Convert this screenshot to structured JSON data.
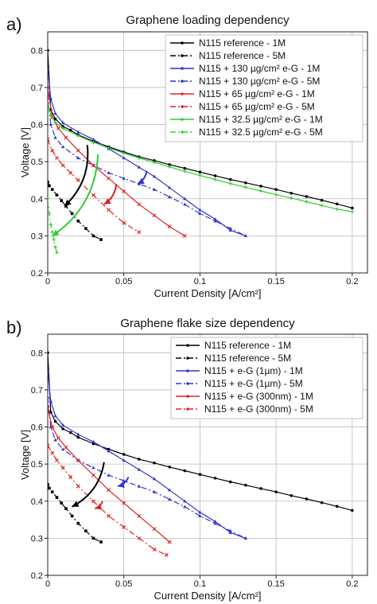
{
  "panels": [
    {
      "panel_tag": "a)",
      "chart_data": {
        "type": "line",
        "title": "Graphene loading dependency",
        "xlabel": "Current Density [A/cm²]",
        "ylabel": "Voltage [V]",
        "xlim": [
          0,
          0.21
        ],
        "ylim": [
          0.2,
          0.85
        ],
        "xticks": [
          "0",
          "0.05",
          "0.1",
          "0.15",
          "0.2"
        ],
        "yticks": [
          "0.2",
          "0.3",
          "0.4",
          "0.5",
          "0.6",
          "0.7",
          "0.8"
        ],
        "grid": true,
        "legend_position": "top-right",
        "series": [
          {
            "name": "N115 reference - 1M",
            "color": "#000000",
            "dash": "solid",
            "marker": "circle",
            "x": [
              0,
              0.002,
              0.005,
              0.01,
              0.015,
              0.02,
              0.03,
              0.04,
              0.05,
              0.06,
              0.07,
              0.08,
              0.09,
              0.1,
              0.11,
              0.12,
              0.13,
              0.14,
              0.15,
              0.16,
              0.17,
              0.18,
              0.19,
              0.2
            ],
            "y": [
              0.8,
              0.64,
              0.615,
              0.595,
              0.585,
              0.572,
              0.555,
              0.54,
              0.526,
              0.513,
              0.503,
              0.492,
              0.482,
              0.472,
              0.462,
              0.452,
              0.443,
              0.434,
              0.425,
              0.415,
              0.406,
              0.396,
              0.386,
              0.375
            ]
          },
          {
            "name": "N115 reference - 5M",
            "color": "#000000",
            "dash": "dashdot",
            "marker": "square",
            "x": [
              0,
              0.001,
              0.003,
              0.006,
              0.009,
              0.012,
              0.016,
              0.02,
              0.025,
              0.03,
              0.035
            ],
            "y": [
              0.445,
              0.435,
              0.425,
              0.41,
              0.395,
              0.38,
              0.36,
              0.34,
              0.32,
              0.3,
              0.29
            ]
          },
          {
            "name": "N115 + 130 µg/cm² e-G - 1M",
            "color": "#3333cc",
            "dash": "solid",
            "marker": "triangle",
            "x": [
              0,
              0.002,
              0.005,
              0.01,
              0.02,
              0.03,
              0.04,
              0.05,
              0.06,
              0.07,
              0.08,
              0.09,
              0.1,
              0.11,
              0.12,
              0.13
            ],
            "y": [
              0.75,
              0.67,
              0.63,
              0.605,
              0.58,
              0.56,
              0.535,
              0.51,
              0.485,
              0.46,
              0.43,
              0.4,
              0.37,
              0.345,
              0.315,
              0.3
            ]
          },
          {
            "name": "N115 + 130 µg/cm² e-G - 5M",
            "color": "#3333cc",
            "dash": "dashdot",
            "marker": "triangle",
            "x": [
              0,
              0.002,
              0.005,
              0.01,
              0.02,
              0.03,
              0.04,
              0.05,
              0.06,
              0.07,
              0.08,
              0.09,
              0.1,
              0.11,
              0.12,
              0.13
            ],
            "y": [
              0.68,
              0.6,
              0.565,
              0.54,
              0.51,
              0.49,
              0.47,
              0.455,
              0.44,
              0.425,
              0.405,
              0.385,
              0.36,
              0.34,
              0.32,
              0.3
            ]
          },
          {
            "name": "N115 + 65 µg/cm² e-G - 1M",
            "color": "#dd2222",
            "dash": "solid",
            "marker": "cross",
            "x": [
              0,
              0.003,
              0.007,
              0.012,
              0.02,
              0.03,
              0.04,
              0.05,
              0.06,
              0.07,
              0.08,
              0.09
            ],
            "y": [
              0.7,
              0.62,
              0.59,
              0.565,
              0.53,
              0.49,
              0.455,
              0.42,
              0.385,
              0.355,
              0.325,
              0.3
            ]
          },
          {
            "name": "N115 + 65 µg/cm² e-G - 5M",
            "color": "#dd2222",
            "dash": "dashdot",
            "marker": "cross",
            "x": [
              0,
              0.003,
              0.006,
              0.01,
              0.015,
              0.02,
              0.03,
              0.04,
              0.05,
              0.06
            ],
            "y": [
              0.56,
              0.53,
              0.51,
              0.49,
              0.47,
              0.45,
              0.41,
              0.37,
              0.335,
              0.31
            ]
          },
          {
            "name": "N115 + 32.5 µg/cm² e-G - 1M",
            "color": "#33cc33",
            "dash": "solid",
            "marker": "plus",
            "x": [
              0,
              0.002,
              0.005,
              0.01,
              0.02,
              0.03,
              0.04,
              0.05,
              0.06,
              0.07,
              0.08,
              0.09,
              0.1,
              0.11,
              0.12,
              0.13,
              0.14,
              0.15,
              0.16,
              0.17,
              0.18,
              0.19,
              0.2
            ],
            "y": [
              0.66,
              0.625,
              0.605,
              0.59,
              0.57,
              0.552,
              0.537,
              0.523,
              0.51,
              0.498,
              0.486,
              0.474,
              0.463,
              0.452,
              0.441,
              0.431,
              0.421,
              0.411,
              0.402,
              0.392,
              0.382,
              0.372,
              0.365
            ]
          },
          {
            "name": "N115 + 32.5 µg/cm² e-G - 5M",
            "color": "#33cc33",
            "dash": "dashdot",
            "marker": "plus",
            "x": [
              0,
              0.001,
              0.002,
              0.003,
              0.004,
              0.005,
              0.006
            ],
            "y": [
              0.4,
              0.36,
              0.33,
              0.31,
              0.29,
              0.27,
              0.255
            ]
          }
        ],
        "annotations": [
          {
            "type": "arrow",
            "color": "#000000",
            "from": [
              0.026,
              0.545
            ],
            "to": [
              0.011,
              0.38
            ],
            "curved": true
          },
          {
            "type": "arrow",
            "color": "#33cc33",
            "from": [
              0.033,
              0.52
            ],
            "to": [
              0.003,
              0.3
            ],
            "curved": true
          },
          {
            "type": "arrow",
            "color": "#dd2222",
            "from": [
              0.045,
              0.44
            ],
            "to": [
              0.037,
              0.385
            ],
            "curved": true
          },
          {
            "type": "arrow",
            "color": "#3333cc",
            "from": [
              0.065,
              0.475
            ],
            "to": [
              0.059,
              0.44
            ],
            "curved": true
          }
        ]
      }
    },
    {
      "panel_tag": "b)",
      "chart_data": {
        "type": "line",
        "title": "Graphene flake size dependency",
        "xlabel": "Current Density [A/cm²]",
        "ylabel": "Voltage [V]",
        "xlim": [
          0,
          0.21
        ],
        "ylim": [
          0.2,
          0.85
        ],
        "xticks": [
          "0",
          "0.05",
          "0.1",
          "0.15",
          "0.2"
        ],
        "yticks": [
          "0.2",
          "0.3",
          "0.4",
          "0.5",
          "0.6",
          "0.7",
          "0.8"
        ],
        "grid": true,
        "legend_position": "top-right",
        "series": [
          {
            "name": "N115 reference - 1M",
            "color": "#000000",
            "dash": "solid",
            "marker": "circle",
            "x": [
              0,
              0.002,
              0.005,
              0.01,
              0.015,
              0.02,
              0.03,
              0.04,
              0.05,
              0.06,
              0.07,
              0.08,
              0.09,
              0.1,
              0.11,
              0.12,
              0.13,
              0.14,
              0.15,
              0.16,
              0.17,
              0.18,
              0.19,
              0.2
            ],
            "y": [
              0.8,
              0.64,
              0.615,
              0.595,
              0.585,
              0.572,
              0.555,
              0.54,
              0.526,
              0.513,
              0.503,
              0.492,
              0.482,
              0.472,
              0.462,
              0.452,
              0.443,
              0.434,
              0.425,
              0.415,
              0.406,
              0.396,
              0.386,
              0.375
            ]
          },
          {
            "name": "N115 reference - 5M",
            "color": "#000000",
            "dash": "dashdot",
            "marker": "square",
            "x": [
              0,
              0.001,
              0.003,
              0.006,
              0.009,
              0.012,
              0.016,
              0.02,
              0.025,
              0.03,
              0.035
            ],
            "y": [
              0.445,
              0.435,
              0.425,
              0.41,
              0.395,
              0.38,
              0.36,
              0.34,
              0.32,
              0.3,
              0.29
            ]
          },
          {
            "name": "N115 + e-G (1µm) - 1M",
            "color": "#3333cc",
            "dash": "solid",
            "marker": "triangle",
            "x": [
              0,
              0.002,
              0.005,
              0.01,
              0.02,
              0.03,
              0.04,
              0.05,
              0.06,
              0.07,
              0.08,
              0.09,
              0.1,
              0.11,
              0.12,
              0.13
            ],
            "y": [
              0.75,
              0.67,
              0.63,
              0.605,
              0.58,
              0.56,
              0.535,
              0.51,
              0.485,
              0.46,
              0.43,
              0.4,
              0.37,
              0.345,
              0.315,
              0.3
            ]
          },
          {
            "name": "N115 + e-G (1µm) - 5M",
            "color": "#3333cc",
            "dash": "dashdot",
            "marker": "triangle",
            "x": [
              0,
              0.002,
              0.005,
              0.01,
              0.02,
              0.03,
              0.04,
              0.05,
              0.06,
              0.07,
              0.08,
              0.09,
              0.1,
              0.11,
              0.12,
              0.13
            ],
            "y": [
              0.68,
              0.6,
              0.565,
              0.54,
              0.51,
              0.49,
              0.47,
              0.455,
              0.44,
              0.425,
              0.405,
              0.385,
              0.36,
              0.34,
              0.32,
              0.3
            ]
          },
          {
            "name": "N115 + e-G (300nm) - 1M",
            "color": "#dd2222",
            "dash": "solid",
            "marker": "cross",
            "x": [
              0,
              0.003,
              0.007,
              0.012,
              0.02,
              0.03,
              0.04,
              0.05,
              0.06,
              0.07,
              0.08
            ],
            "y": [
              0.65,
              0.6,
              0.57,
              0.545,
              0.51,
              0.47,
              0.43,
              0.395,
              0.36,
              0.325,
              0.29
            ]
          },
          {
            "name": "N115 + e-G (300nm) - 5M",
            "color": "#dd2222",
            "dash": "dashdot",
            "marker": "cross",
            "x": [
              0,
              0.003,
              0.006,
              0.01,
              0.015,
              0.02,
              0.03,
              0.04,
              0.05,
              0.06,
              0.07,
              0.078
            ],
            "y": [
              0.55,
              0.53,
              0.51,
              0.49,
              0.465,
              0.44,
              0.4,
              0.36,
              0.33,
              0.3,
              0.27,
              0.255
            ]
          }
        ],
        "annotations": [
          {
            "type": "arrow",
            "color": "#000000",
            "from": [
              0.037,
              0.505
            ],
            "to": [
              0.016,
              0.385
            ],
            "curved": true
          },
          {
            "type": "arrow",
            "color": "#dd2222",
            "from": [
              0.036,
              0.4
            ],
            "to": [
              0.031,
              0.38
            ],
            "curved": true
          },
          {
            "type": "arrow",
            "color": "#3333cc",
            "from": [
              0.053,
              0.465
            ],
            "to": [
              0.046,
              0.44
            ],
            "curved": true
          }
        ]
      }
    }
  ]
}
